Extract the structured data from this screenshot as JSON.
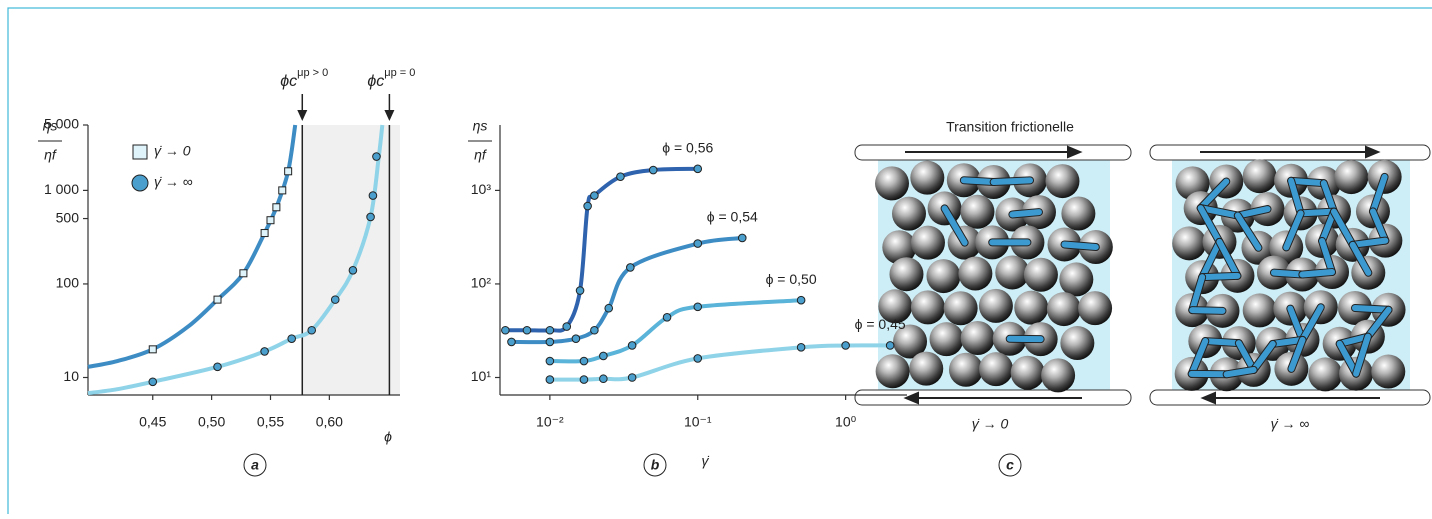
{
  "chart_data": [
    {
      "type": "line",
      "panel": "a",
      "ylabel": "ηs",
      "ylabel_den": "ηf",
      "xlabel": "ϕ",
      "log_y": true,
      "xlim": [
        0.395,
        0.66
      ],
      "ylim": [
        6.5,
        5000
      ],
      "xticks": [
        {
          "value": 0.45,
          "label": "0,45"
        },
        {
          "value": 0.5,
          "label": "0,50"
        },
        {
          "value": 0.55,
          "label": "0,55"
        },
        {
          "value": 0.6,
          "label": "0,60"
        }
      ],
      "yticks": [
        10,
        100,
        500,
        {
          "value": 1000,
          "label": "1 000"
        },
        {
          "value": 5000,
          "label": "5 000"
        }
      ],
      "legend": "top-left",
      "shaded": true,
      "vlines": [
        {
          "x": 0.577,
          "symbol": "ϕc",
          "condition": "μp > 0"
        },
        {
          "x": 0.651,
          "symbol": "ϕc",
          "condition": "μp = 0"
        }
      ],
      "series": [
        {
          "name": "γ̇ → 0",
          "marker": "square",
          "color": "#3d8cc4",
          "marker_color": "#dff3fa",
          "x": [
            0.45,
            0.505,
            0.527,
            0.545,
            0.55,
            0.555,
            0.56,
            0.565
          ],
          "values": [
            20,
            68,
            130,
            350,
            480,
            660,
            1000,
            1600
          ],
          "curve_x": [
            0.395,
            0.42,
            0.45,
            0.48,
            0.505,
            0.527,
            0.545,
            0.555,
            0.565,
            0.571
          ],
          "curve_values": [
            13,
            15,
            20,
            35,
            68,
            130,
            350,
            660,
            1600,
            5000
          ]
        },
        {
          "name": "γ̇ → ∞",
          "marker": "circle",
          "color": "#8fd3e8",
          "marker_color": "#4a9fcc",
          "x": [
            0.45,
            0.505,
            0.545,
            0.568,
            0.585,
            0.605,
            0.62,
            0.635,
            0.637,
            0.64
          ],
          "values": [
            9,
            13,
            19,
            26,
            32,
            68,
            140,
            520,
            880,
            2300
          ],
          "curve_x": [
            0.395,
            0.42,
            0.45,
            0.505,
            0.545,
            0.568,
            0.585,
            0.605,
            0.62,
            0.635,
            0.642,
            0.645
          ],
          "curve_values": [
            6.8,
            7.5,
            9,
            13,
            19,
            26,
            32,
            68,
            140,
            520,
            2300,
            5000
          ]
        }
      ]
    },
    {
      "type": "line",
      "panel": "b",
      "ylabel": "ηs",
      "ylabel_den": "ηf",
      "xlabel": "γ̇",
      "log_x": true,
      "log_y": true,
      "xlim": [
        0.0046,
        2.6
      ],
      "ylim": [
        6.5,
        5000
      ],
      "xticks": [
        {
          "value": 0.01,
          "label": "10⁻²"
        },
        {
          "value": 0.1,
          "label": "10⁻¹"
        },
        {
          "value": 1,
          "label": "10⁰"
        }
      ],
      "yticks": [
        {
          "value": 10,
          "label": "10¹"
        },
        {
          "value": 100,
          "label": "10²"
        },
        {
          "value": 1000,
          "label": "10³"
        }
      ],
      "series": [
        {
          "name": "ϕ = 0,56",
          "marker": "circle",
          "color": "#2f63ad",
          "marker_color": "#4a9fcc",
          "x": [
            0.005,
            0.007,
            0.01,
            0.013,
            0.016,
            0.018,
            0.02,
            0.03,
            0.05,
            0.1
          ],
          "values": [
            32,
            32,
            32,
            35,
            85,
            680,
            880,
            1400,
            1650,
            1700
          ]
        },
        {
          "name": "ϕ = 0,54",
          "marker": "circle",
          "color": "#3d8cc4",
          "marker_color": "#4a9fcc",
          "x": [
            0.0055,
            0.01,
            0.015,
            0.02,
            0.025,
            0.035,
            0.1,
            0.2
          ],
          "values": [
            24,
            24,
            26,
            32,
            55,
            150,
            270,
            310
          ]
        },
        {
          "name": "ϕ = 0,50",
          "marker": "circle",
          "color": "#5ab3d8",
          "marker_color": "#4a9fcc",
          "x": [
            0.01,
            0.017,
            0.023,
            0.036,
            0.062,
            0.1,
            0.5
          ],
          "values": [
            15,
            15,
            17,
            22,
            44,
            57,
            67
          ]
        },
        {
          "name": "ϕ = 0,45",
          "marker": "circle",
          "color": "#8fd3e8",
          "marker_color": "#4a9fcc",
          "x": [
            0.01,
            0.017,
            0.023,
            0.036,
            0.1,
            0.5,
            1,
            2
          ],
          "values": [
            9.5,
            9.5,
            9.7,
            10,
            16,
            21,
            22,
            22
          ]
        }
      ]
    }
  ],
  "diagram": {
    "title": "Transition frictionelle",
    "left_label": "γ̇ → 0",
    "right_label": "γ̇ → ∞",
    "panel": "c"
  }
}
